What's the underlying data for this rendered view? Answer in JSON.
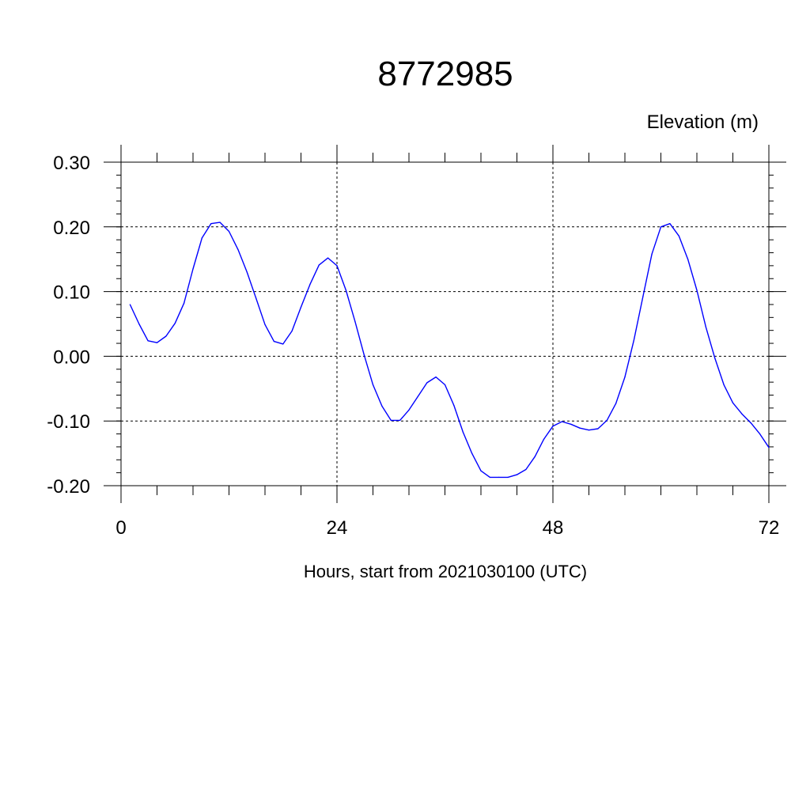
{
  "chart_data": {
    "type": "line",
    "title": "8772985",
    "ylabel": "Elevation (m)",
    "xlabel": "Hours, start from 2021030100 (UTC)",
    "xlim": [
      0,
      72
    ],
    "ylim": [
      -0.2,
      0.3
    ],
    "x_ticks": [
      0,
      24,
      48,
      72
    ],
    "x_tick_labels": [
      "0",
      "24",
      "48",
      "72"
    ],
    "y_ticks": [
      -0.2,
      -0.1,
      0.0,
      0.1,
      0.2,
      0.3
    ],
    "y_tick_labels": [
      "-0.20",
      "-0.10",
      "0.00",
      "0.10",
      "0.20",
      "0.30"
    ],
    "grid": true,
    "series": [
      {
        "color": "#0000ff",
        "x": [
          1,
          2,
          3,
          4,
          5,
          6,
          7,
          8,
          9,
          10,
          11,
          12,
          13,
          14,
          15,
          16,
          17,
          18,
          19,
          20,
          21,
          22,
          23,
          24,
          25,
          26,
          27,
          28,
          29,
          30,
          31,
          32,
          33,
          34,
          35,
          36,
          37,
          38,
          39,
          40,
          41,
          42,
          43,
          44,
          45,
          46,
          47,
          48,
          49,
          50,
          51,
          52,
          53,
          54,
          55,
          56,
          57,
          58,
          59,
          60,
          61,
          62,
          63,
          64,
          65,
          66,
          67,
          68,
          69,
          70,
          71,
          72
        ],
        "values": [
          0.08,
          0.05,
          0.024,
          0.021,
          0.031,
          0.051,
          0.082,
          0.135,
          0.183,
          0.205,
          0.207,
          0.193,
          0.165,
          0.13,
          0.09,
          0.049,
          0.023,
          0.019,
          0.039,
          0.076,
          0.111,
          0.141,
          0.152,
          0.14,
          0.102,
          0.054,
          0.003,
          -0.044,
          -0.077,
          -0.099,
          -0.099,
          -0.083,
          -0.062,
          -0.041,
          -0.032,
          -0.044,
          -0.076,
          -0.117,
          -0.15,
          -0.177,
          -0.187,
          -0.187,
          -0.187,
          -0.183,
          -0.175,
          -0.155,
          -0.128,
          -0.108,
          -0.101,
          -0.105,
          -0.111,
          -0.114,
          -0.112,
          -0.099,
          -0.073,
          -0.032,
          0.025,
          0.092,
          0.158,
          0.2,
          0.205,
          0.186,
          0.15,
          0.102,
          0.045,
          -0.003,
          -0.044,
          -0.072,
          -0.089,
          -0.103,
          -0.12,
          -0.141
        ]
      }
    ]
  }
}
